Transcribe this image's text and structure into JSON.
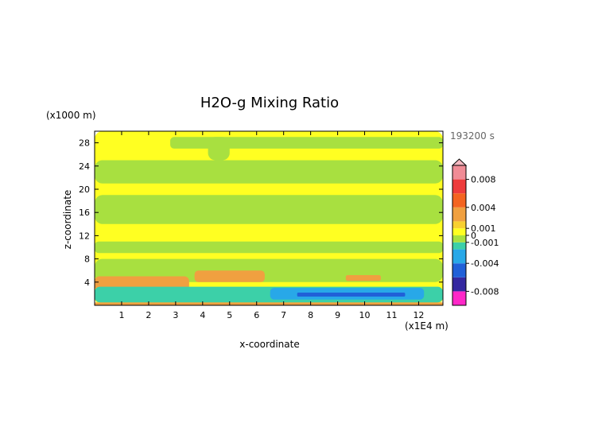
{
  "chart_data": {
    "type": "heatmap",
    "title": "H2O-g Mixing Ratio",
    "xlabel": "x-coordinate",
    "ylabel": "z-coordinate",
    "x_unit": "(x1E4 m)",
    "y_unit": "(x1000 m)",
    "time_label": "193200 s",
    "xlim": [
      0,
      12.9
    ],
    "ylim": [
      0,
      30
    ],
    "x_ticks": [
      1,
      2,
      3,
      4,
      5,
      6,
      7,
      8,
      9,
      10,
      11,
      12
    ],
    "y_ticks": [
      4,
      8,
      12,
      16,
      20,
      24,
      28
    ],
    "colorbar": {
      "range": [
        -0.01,
        0.01
      ],
      "labeled_levels": [
        "0.008",
        "0.004",
        "0.001",
        "0",
        "-0.001",
        "-0.004",
        "-0.008"
      ],
      "colors": {
        "top_arrow": "#f4b8c0",
        "0.009": "#f08c96",
        "0.007": "#ee3c3c",
        "0.005": "#f46420",
        "0.003": "#f0a040",
        "0.0015": "#f8d030",
        "0.0005": "#ffff22",
        "-0.0005": "#a8e040",
        "-0.0015": "#3cd0a8",
        "-0.003": "#28a8e8",
        "-0.005": "#2060d8",
        "-0.007": "#3428a0",
        "-0.009": "#ff28c8"
      }
    },
    "field_regions": [
      {
        "x": [
          0,
          12.9
        ],
        "z": [
          0,
          30
        ],
        "value": 0.0005
      },
      {
        "x": [
          2.8,
          12.9
        ],
        "z": [
          27,
          29
        ],
        "value": -0.0005
      },
      {
        "x": [
          4.2,
          5.0
        ],
        "z": [
          25,
          29
        ],
        "value": -0.0005
      },
      {
        "x": [
          0,
          12.9
        ],
        "z": [
          21,
          25
        ],
        "value": -0.0005
      },
      {
        "x": [
          0,
          12.9
        ],
        "z": [
          14,
          19
        ],
        "value": -0.0005
      },
      {
        "x": [
          0,
          12.9
        ],
        "z": [
          9,
          11
        ],
        "value": -0.0005
      },
      {
        "x": [
          0,
          12.9
        ],
        "z": [
          4,
          8
        ],
        "value": -0.0005
      },
      {
        "x": [
          0,
          3.5
        ],
        "z": [
          2.5,
          5
        ],
        "value": 0.003
      },
      {
        "x": [
          3.7,
          6.3
        ],
        "z": [
          4,
          6
        ],
        "value": 0.003
      },
      {
        "x": [
          9.3,
          10.6
        ],
        "z": [
          4.2,
          5.2
        ],
        "value": 0.003
      },
      {
        "x": [
          0,
          12.9
        ],
        "z": [
          0.5,
          3.2
        ],
        "value": -0.0015
      },
      {
        "x": [
          6.5,
          12.2
        ],
        "z": [
          1,
          3
        ],
        "value": -0.003
      },
      {
        "x": [
          7.5,
          11.5
        ],
        "z": [
          1.5,
          2.2
        ],
        "value": -0.005
      },
      {
        "x": [
          0,
          12.9
        ],
        "z": [
          0,
          0.5
        ],
        "value": 0.003
      }
    ]
  }
}
